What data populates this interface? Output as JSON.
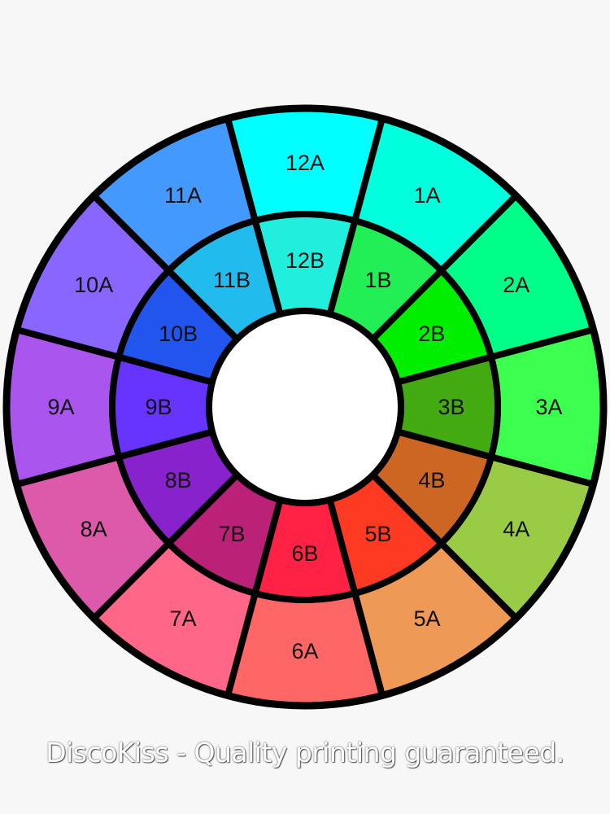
{
  "wheel": {
    "outer": [
      {
        "label": "12A",
        "color": "#00ffff"
      },
      {
        "label": "1A",
        "color": "#00ffdd"
      },
      {
        "label": "2A",
        "color": "#00ff88"
      },
      {
        "label": "3A",
        "color": "#3cff50"
      },
      {
        "label": "4A",
        "color": "#99cc44"
      },
      {
        "label": "5A",
        "color": "#ee9955"
      },
      {
        "label": "6A",
        "color": "#ff6666"
      },
      {
        "label": "7A",
        "color": "#ff6688"
      },
      {
        "label": "8A",
        "color": "#dd5aaa"
      },
      {
        "label": "9A",
        "color": "#aa55ee"
      },
      {
        "label": "10A",
        "color": "#8866ff"
      },
      {
        "label": "11A",
        "color": "#4499ff"
      }
    ],
    "inner": [
      {
        "label": "12B",
        "color": "#22eedd"
      },
      {
        "label": "1B",
        "color": "#22ee55"
      },
      {
        "label": "2B",
        "color": "#00ee00"
      },
      {
        "label": "3B",
        "color": "#44aa11"
      },
      {
        "label": "4B",
        "color": "#cc6622"
      },
      {
        "label": "5B",
        "color": "#ff3a22"
      },
      {
        "label": "6B",
        "color": "#ff2244"
      },
      {
        "label": "7B",
        "color": "#bb2277"
      },
      {
        "label": "8B",
        "color": "#8822cc"
      },
      {
        "label": "9B",
        "color": "#6633ff"
      },
      {
        "label": "10B",
        "color": "#2255ee"
      },
      {
        "label": "11B",
        "color": "#22bbee"
      }
    ]
  },
  "watermark": "DiscoKiss - Quality printing guaranteed."
}
